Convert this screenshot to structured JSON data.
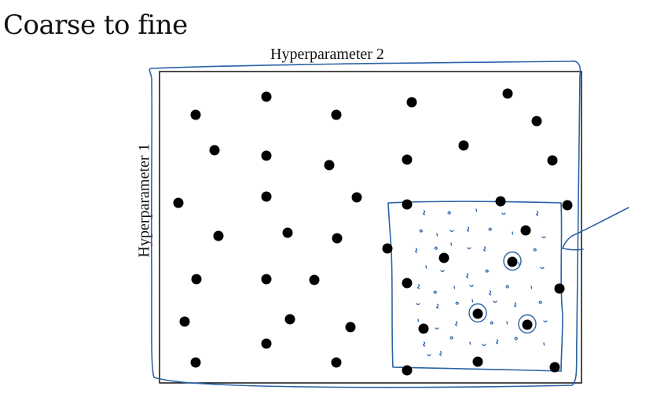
{
  "slide": {
    "title": "Coarse to fine"
  },
  "diagram": {
    "x_axis_label": "Hyperparameter 2",
    "y_axis_label": "Hyperparameter 1",
    "coarse_points_count_shown": 45,
    "fine_region_highlighted": true,
    "circled_best_points_count": 3,
    "ink_color": "#2b63a8",
    "dot_color": "#000000"
  }
}
